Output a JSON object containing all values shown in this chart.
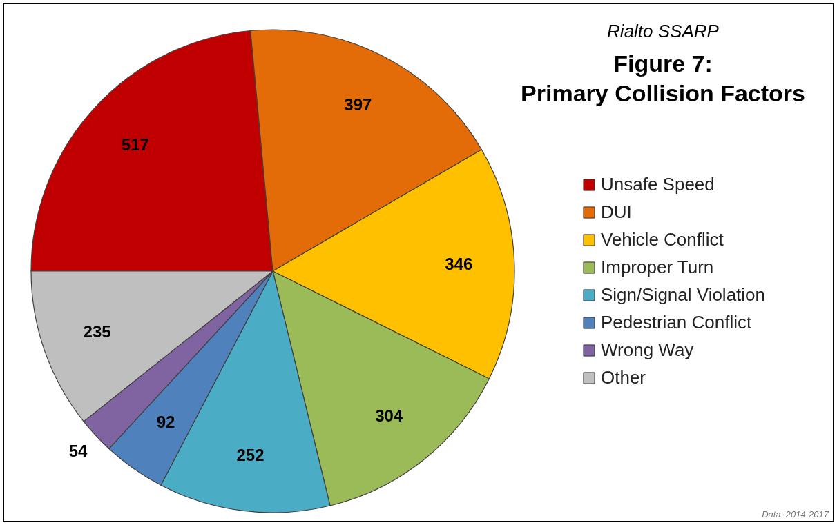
{
  "chart_data": {
    "type": "pie",
    "subtitle": "Rialto SSARP",
    "title": "Figure 7:\nPrimary Collision Factors",
    "categories": [
      "Unsafe Speed",
      "DUI",
      "Vehicle Conflict",
      "Improper Turn",
      "Sign/Signal Violation",
      "Pedestrian Conflict",
      "Wrong Way",
      "Other"
    ],
    "values": [
      517,
      397,
      346,
      304,
      252,
      92,
      54,
      235
    ],
    "colors": [
      "#c00000",
      "#e36c09",
      "#ffc000",
      "#9bbb59",
      "#4bacc6",
      "#4f81bd",
      "#8064a2",
      "#bfbfbf"
    ],
    "data_labels": true,
    "legend": "right",
    "annotations": [
      "Data: 2014-2017"
    ]
  }
}
